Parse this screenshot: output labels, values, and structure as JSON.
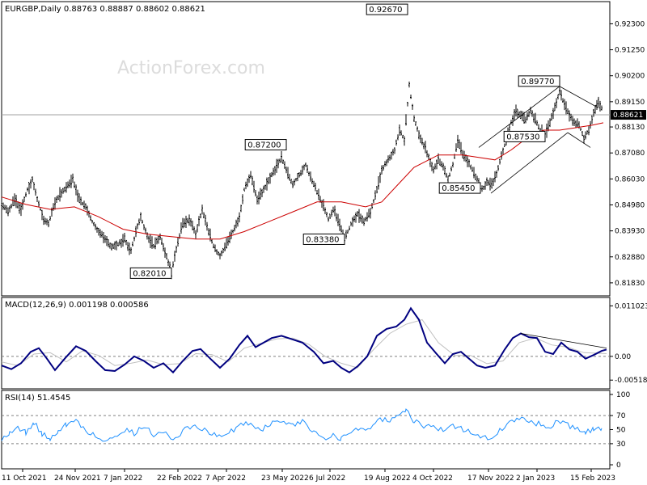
{
  "chart_data": {
    "type": "line",
    "watermark": "ActionForex.com",
    "main": {
      "header": "EURGBP,Daily  0.88763 0.88887 0.88602 0.88621",
      "ylim": [
        0.815,
        0.93
      ],
      "ticks": [
        "0.92300",
        "0.91250",
        "0.90200",
        "0.89150",
        "0.88130",
        "0.87080",
        "0.86030",
        "0.84980",
        "0.83930",
        "0.82880",
        "0.81830"
      ],
      "tick_values": [
        0.923,
        0.9125,
        0.902,
        0.8915,
        0.8813,
        0.8708,
        0.8603,
        0.8498,
        0.8393,
        0.8288,
        0.8183
      ],
      "current": {
        "label": "0.88621",
        "value": 0.88621
      },
      "price_path": [
        [
          0,
          0.85
        ],
        [
          8,
          0.847
        ],
        [
          16,
          0.852
        ],
        [
          24,
          0.848
        ],
        [
          32,
          0.856
        ],
        [
          38,
          0.86
        ],
        [
          44,
          0.852
        ],
        [
          52,
          0.844
        ],
        [
          58,
          0.842
        ],
        [
          64,
          0.849
        ],
        [
          72,
          0.854
        ],
        [
          80,
          0.857
        ],
        [
          88,
          0.86
        ],
        [
          96,
          0.852
        ],
        [
          104,
          0.849
        ],
        [
          112,
          0.843
        ],
        [
          120,
          0.839
        ],
        [
          128,
          0.836
        ],
        [
          136,
          0.833
        ],
        [
          144,
          0.834
        ],
        [
          152,
          0.836
        ],
        [
          160,
          0.831
        ],
        [
          166,
          0.839
        ],
        [
          172,
          0.845
        ],
        [
          180,
          0.837
        ],
        [
          188,
          0.833
        ],
        [
          196,
          0.837
        ],
        [
          204,
          0.829
        ],
        [
          210,
          0.822
        ],
        [
          216,
          0.832
        ],
        [
          224,
          0.842
        ],
        [
          232,
          0.844
        ],
        [
          240,
          0.838
        ],
        [
          248,
          0.848
        ],
        [
          256,
          0.839
        ],
        [
          262,
          0.833
        ],
        [
          270,
          0.829
        ],
        [
          278,
          0.834
        ],
        [
          286,
          0.839
        ],
        [
          294,
          0.845
        ],
        [
          300,
          0.856
        ],
        [
          308,
          0.862
        ],
        [
          316,
          0.852
        ],
        [
          324,
          0.856
        ],
        [
          332,
          0.861
        ],
        [
          340,
          0.865
        ],
        [
          346,
          0.869
        ],
        [
          352,
          0.864
        ],
        [
          360,
          0.858
        ],
        [
          368,
          0.862
        ],
        [
          376,
          0.866
        ],
        [
          382,
          0.861
        ],
        [
          390,
          0.855
        ],
        [
          398,
          0.849
        ],
        [
          404,
          0.844
        ],
        [
          410,
          0.848
        ],
        [
          418,
          0.842
        ],
        [
          424,
          0.836
        ],
        [
          432,
          0.842
        ],
        [
          440,
          0.846
        ],
        [
          448,
          0.843
        ],
        [
          456,
          0.847
        ],
        [
          464,
          0.856
        ],
        [
          470,
          0.864
        ],
        [
          478,
          0.868
        ],
        [
          486,
          0.872
        ],
        [
          492,
          0.88
        ],
        [
          498,
          0.876
        ],
        [
          504,
          0.898
        ],
        [
          510,
          0.885
        ],
        [
          516,
          0.878
        ],
        [
          522,
          0.874
        ],
        [
          528,
          0.869
        ],
        [
          534,
          0.864
        ],
        [
          540,
          0.868
        ],
        [
          546,
          0.865
        ],
        [
          552,
          0.86
        ],
        [
          558,
          0.866
        ],
        [
          564,
          0.876
        ],
        [
          570,
          0.87
        ],
        [
          576,
          0.868
        ],
        [
          582,
          0.864
        ],
        [
          588,
          0.86
        ],
        [
          594,
          0.856
        ],
        [
          600,
          0.859
        ],
        [
          606,
          0.858
        ],
        [
          612,
          0.862
        ],
        [
          618,
          0.87
        ],
        [
          624,
          0.876
        ],
        [
          630,
          0.883
        ],
        [
          636,
          0.888
        ],
        [
          642,
          0.886
        ],
        [
          648,
          0.884
        ],
        [
          654,
          0.888
        ],
        [
          660,
          0.884
        ],
        [
          666,
          0.88
        ],
        [
          672,
          0.878
        ],
        [
          678,
          0.883
        ],
        [
          684,
          0.889
        ],
        [
          690,
          0.896
        ],
        [
          696,
          0.89
        ],
        [
          702,
          0.886
        ],
        [
          708,
          0.883
        ],
        [
          714,
          0.882
        ],
        [
          720,
          0.877
        ],
        [
          726,
          0.88
        ],
        [
          732,
          0.887
        ],
        [
          738,
          0.891
        ],
        [
          744,
          0.888
        ]
      ],
      "ma_path": [
        [
          0,
          0.853
        ],
        [
          30,
          0.85
        ],
        [
          60,
          0.848
        ],
        [
          90,
          0.849
        ],
        [
          120,
          0.845
        ],
        [
          150,
          0.84
        ],
        [
          180,
          0.838
        ],
        [
          210,
          0.837
        ],
        [
          240,
          0.836
        ],
        [
          270,
          0.836
        ],
        [
          300,
          0.839
        ],
        [
          330,
          0.843
        ],
        [
          360,
          0.847
        ],
        [
          390,
          0.851
        ],
        [
          420,
          0.851
        ],
        [
          450,
          0.849
        ],
        [
          470,
          0.851
        ],
        [
          490,
          0.858
        ],
        [
          510,
          0.865
        ],
        [
          540,
          0.87
        ],
        [
          570,
          0.87
        ],
        [
          590,
          0.869
        ],
        [
          610,
          0.868
        ],
        [
          630,
          0.872
        ],
        [
          650,
          0.877
        ],
        [
          670,
          0.88
        ],
        [
          690,
          0.88
        ],
        [
          710,
          0.881
        ],
        [
          730,
          0.882
        ],
        [
          744,
          0.883
        ]
      ],
      "callouts": [
        {
          "text": "0.92670",
          "x": 502,
          "y": 0.9267
        },
        {
          "text": "0.89770",
          "x": 690,
          "y": 0.8977
        },
        {
          "text": "0.87200",
          "x": 352,
          "y": 0.872
        },
        {
          "text": "0.87530",
          "x": 672,
          "y": 0.8753
        },
        {
          "text": "0.85450",
          "x": 592,
          "y": 0.8545
        },
        {
          "text": "0.83380",
          "x": 424,
          "y": 0.8338
        },
        {
          "text": "0.82010",
          "x": 210,
          "y": 0.8201
        }
      ],
      "trend_lines": [
        [
          [
            590,
            0.873
          ],
          [
            690,
            0.8977
          ]
        ],
        [
          [
            605,
            0.8545
          ],
          [
            700,
            0.879
          ]
        ],
        [
          [
            690,
            0.8977
          ],
          [
            738,
            0.889
          ]
        ],
        [
          [
            700,
            0.879
          ],
          [
            728,
            0.873
          ]
        ]
      ]
    },
    "macd": {
      "header": "MACD(12,26,9) 0.001198 0.000586",
      "ylim": [
        -0.0062,
        0.0118
      ],
      "ticks": [
        "0.011023",
        "0.00",
        "-0.005182"
      ],
      "tick_values": [
        0.011023,
        0.0,
        -0.005182
      ],
      "path": [
        [
          0,
          -0.002
        ],
        [
          12,
          -0.0028
        ],
        [
          24,
          -0.0015
        ],
        [
          36,
          0.001
        ],
        [
          46,
          0.0018
        ],
        [
          56,
          -0.0005
        ],
        [
          66,
          -0.003
        ],
        [
          78,
          -0.0005
        ],
        [
          92,
          0.0022
        ],
        [
          104,
          0.0012
        ],
        [
          116,
          -0.001
        ],
        [
          128,
          -0.003
        ],
        [
          140,
          -0.0032
        ],
        [
          152,
          -0.0018
        ],
        [
          164,
          0.0
        ],
        [
          176,
          -0.001
        ],
        [
          188,
          -0.0025
        ],
        [
          200,
          -0.0015
        ],
        [
          212,
          -0.0035
        ],
        [
          224,
          -0.001
        ],
        [
          236,
          0.0012
        ],
        [
          246,
          0.0016
        ],
        [
          258,
          -0.0005
        ],
        [
          270,
          -0.0025
        ],
        [
          282,
          -0.0005
        ],
        [
          294,
          0.0025
        ],
        [
          304,
          0.0045
        ],
        [
          314,
          0.002
        ],
        [
          324,
          0.003
        ],
        [
          334,
          0.004
        ],
        [
          346,
          0.0045
        ],
        [
          358,
          0.0038
        ],
        [
          372,
          0.003
        ],
        [
          386,
          0.001
        ],
        [
          398,
          -0.0015
        ],
        [
          410,
          -0.001
        ],
        [
          420,
          -0.0025
        ],
        [
          430,
          -0.0035
        ],
        [
          440,
          -0.0022
        ],
        [
          452,
          0.0
        ],
        [
          464,
          0.0045
        ],
        [
          476,
          0.006
        ],
        [
          488,
          0.0065
        ],
        [
          498,
          0.008
        ],
        [
          506,
          0.0105
        ],
        [
          516,
          0.008
        ],
        [
          526,
          0.003
        ],
        [
          538,
          0.0005
        ],
        [
          548,
          -0.0015
        ],
        [
          558,
          0.0005
        ],
        [
          568,
          0.001
        ],
        [
          578,
          -0.0005
        ],
        [
          588,
          -0.002
        ],
        [
          598,
          -0.0025
        ],
        [
          610,
          -0.002
        ],
        [
          622,
          0.0015
        ],
        [
          632,
          0.004
        ],
        [
          642,
          0.005
        ],
        [
          652,
          0.0042
        ],
        [
          662,
          0.004
        ],
        [
          672,
          0.001
        ],
        [
          682,
          0.0005
        ],
        [
          692,
          0.003
        ],
        [
          702,
          0.0015
        ],
        [
          712,
          0.001
        ],
        [
          722,
          -0.0005
        ],
        [
          732,
          0.0003
        ],
        [
          742,
          0.0012
        ],
        [
          748,
          0.0015
        ]
      ],
      "signal_path": [
        [
          0,
          -0.0012
        ],
        [
          20,
          -0.002
        ],
        [
          40,
          0.0005
        ],
        [
          60,
          0.0008
        ],
        [
          80,
          -0.0012
        ],
        [
          100,
          0.0012
        ],
        [
          120,
          0.0002
        ],
        [
          140,
          -0.002
        ],
        [
          160,
          -0.0015
        ],
        [
          180,
          -0.0008
        ],
        [
          200,
          -0.0018
        ],
        [
          220,
          -0.0016
        ],
        [
          240,
          0.0006
        ],
        [
          260,
          0.0004
        ],
        [
          280,
          -0.0012
        ],
        [
          300,
          0.0018
        ],
        [
          320,
          0.0028
        ],
        [
          340,
          0.0038
        ],
        [
          360,
          0.004
        ],
        [
          380,
          0.0026
        ],
        [
          400,
          0.0
        ],
        [
          420,
          -0.0015
        ],
        [
          440,
          -0.0025
        ],
        [
          460,
          0.0015
        ],
        [
          480,
          0.005
        ],
        [
          500,
          0.007
        ],
        [
          520,
          0.008
        ],
        [
          540,
          0.003
        ],
        [
          560,
          0.0002
        ],
        [
          580,
          0.0002
        ],
        [
          600,
          -0.0016
        ],
        [
          620,
          -0.001
        ],
        [
          640,
          0.003
        ],
        [
          660,
          0.004
        ],
        [
          680,
          0.0025
        ],
        [
          700,
          0.002
        ],
        [
          720,
          0.0008
        ],
        [
          748,
          0.0006
        ]
      ],
      "trend_line": [
        [
          642,
          0.005
        ],
        [
          748,
          0.0018
        ]
      ]
    },
    "rsi": {
      "header": "RSI(14) 51.4545",
      "ylim": [
        0,
        100
      ],
      "ticks": [
        "100",
        "70",
        "50",
        "30",
        "0"
      ],
      "tick_values": [
        100,
        70,
        50,
        30,
        0
      ],
      "levels": [
        70,
        30
      ],
      "path": [
        [
          0,
          38
        ],
        [
          10,
          45
        ],
        [
          20,
          52
        ],
        [
          30,
          46
        ],
        [
          40,
          60
        ],
        [
          50,
          44
        ],
        [
          60,
          36
        ],
        [
          70,
          50
        ],
        [
          80,
          57
        ],
        [
          92,
          62
        ],
        [
          104,
          50
        ],
        [
          116,
          40
        ],
        [
          128,
          33
        ],
        [
          140,
          42
        ],
        [
          152,
          50
        ],
        [
          164,
          45
        ],
        [
          176,
          55
        ],
        [
          188,
          43
        ],
        [
          200,
          49
        ],
        [
          212,
          33
        ],
        [
          224,
          48
        ],
        [
          236,
          56
        ],
        [
          248,
          52
        ],
        [
          260,
          44
        ],
        [
          272,
          38
        ],
        [
          284,
          48
        ],
        [
          296,
          57
        ],
        [
          308,
          60
        ],
        [
          320,
          50
        ],
        [
          332,
          58
        ],
        [
          346,
          63
        ],
        [
          360,
          55
        ],
        [
          372,
          62
        ],
        [
          386,
          48
        ],
        [
          398,
          38
        ],
        [
          410,
          44
        ],
        [
          420,
          36
        ],
        [
          432,
          48
        ],
        [
          444,
          50
        ],
        [
          456,
          54
        ],
        [
          468,
          66
        ],
        [
          480,
          62
        ],
        [
          490,
          68
        ],
        [
          500,
          78
        ],
        [
          510,
          62
        ],
        [
          522,
          55
        ],
        [
          534,
          57
        ],
        [
          546,
          48
        ],
        [
          558,
          55
        ],
        [
          568,
          52
        ],
        [
          580,
          46
        ],
        [
          592,
          40
        ],
        [
          604,
          38
        ],
        [
          616,
          48
        ],
        [
          628,
          60
        ],
        [
          640,
          66
        ],
        [
          652,
          62
        ],
        [
          664,
          58
        ],
        [
          676,
          52
        ],
        [
          688,
          64
        ],
        [
          700,
          56
        ],
        [
          712,
          50
        ],
        [
          722,
          45
        ],
        [
          732,
          52
        ],
        [
          742,
          52
        ]
      ]
    },
    "x_axis": {
      "labels": [
        "11 Oct 2021",
        "24 Nov 2021",
        "7 Jan 2022",
        "22 Feb 2022",
        "7 Apr 2022",
        "23 May 2022",
        "6 Jul 2022",
        "19 Aug 2022",
        "4 Oct 2022",
        "17 Nov 2022",
        "2 Jan 2023",
        "15 Feb 2023"
      ],
      "positions": [
        28,
        93,
        154,
        220,
        280,
        349,
        408,
        476,
        536,
        604,
        664,
        731
      ]
    },
    "colors": {
      "price": "#000000",
      "moving_average": "#cc0000",
      "macd_line": "#000080",
      "signal_line": "#c0c0c0",
      "rsi_line": "#1e90ff",
      "grid_dash": "#808080",
      "trend_line": "#000000"
    }
  }
}
